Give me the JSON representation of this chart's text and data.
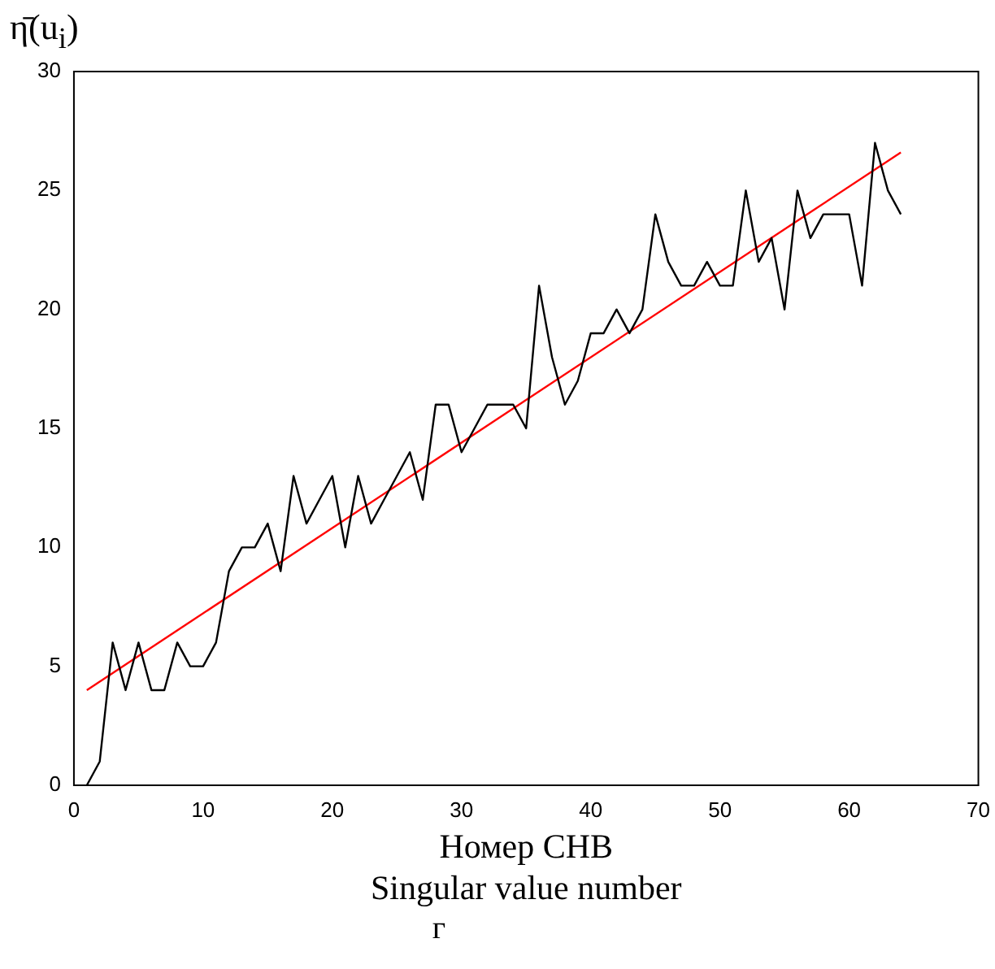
{
  "chart_data": {
    "type": "line",
    "ylabel": "η̄(u$_{i}$)",
    "xlabel": "Номер СНВ\nSingular value number",
    "annotations": [
      "г"
    ],
    "x": [
      1,
      2,
      3,
      4,
      5,
      6,
      7,
      8,
      9,
      10,
      11,
      12,
      13,
      14,
      15,
      16,
      17,
      18,
      19,
      20,
      21,
      22,
      23,
      24,
      25,
      26,
      27,
      28,
      29,
      30,
      31,
      32,
      33,
      34,
      35,
      36,
      37,
      38,
      39,
      40,
      41,
      42,
      43,
      44,
      45,
      46,
      47,
      48,
      49,
      50,
      51,
      52,
      53,
      54,
      55,
      56,
      57,
      58,
      59,
      60,
      61,
      62,
      63,
      64
    ],
    "series": [
      {
        "color": "#000000",
        "values": [
          0,
          1,
          6,
          4,
          6,
          4,
          4,
          6,
          5,
          5,
          6,
          9,
          10,
          10,
          11,
          9,
          13,
          11,
          12,
          13,
          10,
          13,
          11,
          12,
          13,
          14,
          12,
          16,
          16,
          14,
          15,
          16,
          16,
          16,
          15,
          21,
          18,
          16,
          17,
          19,
          19,
          20,
          19,
          20,
          24,
          22,
          21,
          21,
          22,
          21,
          21,
          25,
          22,
          23,
          20,
          25,
          23,
          24,
          24,
          24,
          21,
          27,
          25,
          24
        ]
      },
      {
        "type": "line",
        "color": "#ff0000",
        "x": [
          1,
          64
        ],
        "values": [
          4.0,
          26.6
        ]
      }
    ],
    "xlim": [
      0,
      70
    ],
    "xticks": [
      0,
      10,
      20,
      30,
      40,
      50,
      60,
      70
    ],
    "ylim": [
      0,
      30
    ],
    "yticks": [
      0,
      5,
      10,
      15,
      20,
      25,
      30
    ],
    "grid": false,
    "legend": false,
    "marker": "none",
    "line_style": "solid"
  }
}
